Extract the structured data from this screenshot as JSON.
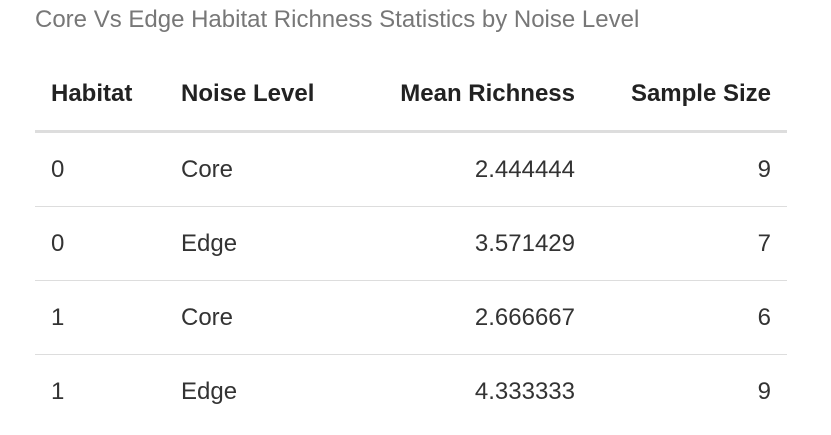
{
  "caption": "Core Vs Edge Habitat Richness Statistics by Noise Level",
  "table": {
    "headers": [
      "Habitat",
      "Noise Level",
      "Mean Richness",
      "Sample Size"
    ],
    "rows": [
      [
        "0",
        "Core",
        "2.444444",
        "9"
      ],
      [
        "0",
        "Edge",
        "3.571429",
        "7"
      ],
      [
        "1",
        "Core",
        "2.666667",
        "6"
      ],
      [
        "1",
        "Edge",
        "4.333333",
        "9"
      ]
    ]
  }
}
